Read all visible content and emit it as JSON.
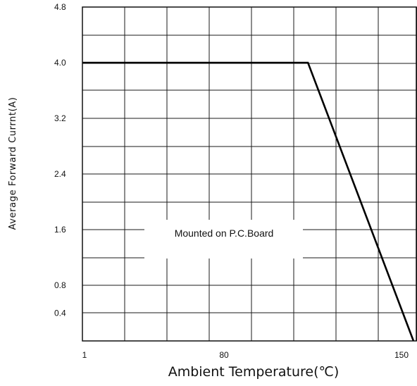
{
  "chart_data": {
    "type": "line",
    "xlabel": "Ambient Temperature(℃)",
    "ylabel": "Average Forward Currnt(A)",
    "x_tick_labels": [
      "1",
      "80",
      "150"
    ],
    "y_tick_labels": [
      "4.8",
      "4.0",
      "3.2",
      "2.4",
      "1.6",
      "0.8",
      "0.4"
    ],
    "y_ticks": [
      4.8,
      4.0,
      3.2,
      2.4,
      1.6,
      0.8,
      0.4
    ],
    "ylim": [
      0,
      4.8
    ],
    "xlim": [
      1,
      150
    ],
    "grid": true,
    "annotation": "Mounted on P.C.Board",
    "series": [
      {
        "x": [
          1,
          102.5,
          150
        ],
        "y": [
          4.0,
          4.0,
          0
        ]
      }
    ]
  }
}
